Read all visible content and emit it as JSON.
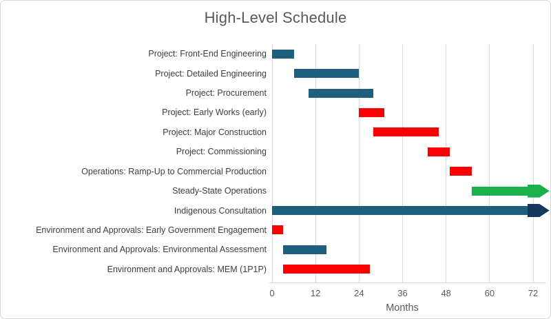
{
  "chart_data": {
    "type": "bar",
    "subtype": "gantt",
    "title": "High-Level Schedule",
    "xlabel": "Months",
    "x_ticks": [
      0,
      12,
      24,
      36,
      48,
      60,
      72
    ],
    "xlim": [
      0,
      76.5
    ],
    "grid": "vertical-only",
    "legend": "none",
    "colors": {
      "blue_bar": "#1E5F7E",
      "red_bar": "#FB0000",
      "green_arrow": "#1CB04C",
      "navy_arrow_head": "#17375C",
      "gridline": "#D9D9D9",
      "title_text": "#595959",
      "label_text": "#3E3E3E",
      "tick_text": "#595959"
    },
    "tasks": [
      {
        "label": "Project: Front-End Engineering",
        "start": 0,
        "end": 6,
        "shape": "bar",
        "color": "#1E5F7E"
      },
      {
        "label": "Project: Detailed Engineering",
        "start": 6,
        "end": 24,
        "shape": "bar",
        "color": "#1E5F7E"
      },
      {
        "label": "Project: Procurement",
        "start": 10,
        "end": 28,
        "shape": "bar",
        "color": "#1E5F7E"
      },
      {
        "label": "Project: Early Works (early)",
        "start": 24,
        "end": 31,
        "shape": "bar",
        "color": "#FB0000"
      },
      {
        "label": "Project: Major Construction",
        "start": 28,
        "end": 46,
        "shape": "bar",
        "color": "#FB0000"
      },
      {
        "label": "Project: Commissioning",
        "start": 43,
        "end": 49,
        "shape": "bar",
        "color": "#FB0000"
      },
      {
        "label": "Operations: Ramp-Up to Commercial Production",
        "start": 49,
        "end": 55,
        "shape": "bar",
        "color": "#FB0000"
      },
      {
        "label": "Steady-State Operations",
        "start": 55,
        "end": 76.5,
        "shape": "arrow",
        "color": "#1CB04C",
        "head_color": "#1CB04C"
      },
      {
        "label": "Indigenous Consultation",
        "start": 0,
        "end": 76.5,
        "shape": "arrow",
        "color": "#1E5F7E",
        "head_color": "#17375C"
      },
      {
        "label": "Environment and Approvals: Early Government Engagement",
        "start": 0,
        "end": 3,
        "shape": "bar",
        "color": "#FB0000"
      },
      {
        "label": "Environment and Approvals: Environmental Assessment",
        "start": 3,
        "end": 15,
        "shape": "bar",
        "color": "#1E5F7E"
      },
      {
        "label": "Environment and Approvals: MEM (1P1P)",
        "start": 3,
        "end": 27,
        "shape": "bar",
        "color": "#FB0000"
      }
    ]
  }
}
